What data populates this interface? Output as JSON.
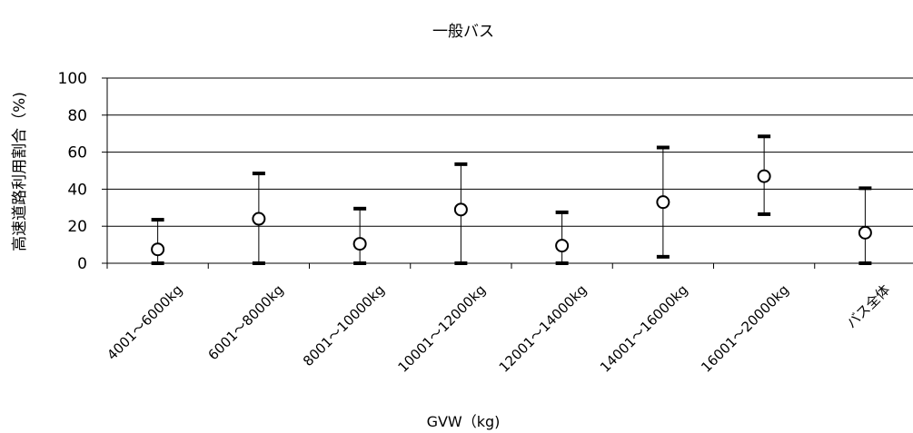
{
  "chart_data": {
    "type": "scatter",
    "title": "一般バス",
    "xlabel": "GVW（kg)",
    "ylabel": "高速道路利用割合（%)",
    "ylim": [
      0,
      100
    ],
    "yticks": [
      0,
      20,
      40,
      60,
      80,
      100
    ],
    "grid": true,
    "categories": [
      "4001～6000kg",
      "6001～8000kg",
      "8001～10000kg",
      "10001～12000kg",
      "12001～14000kg",
      "14001～16000kg",
      "16001～20000kg",
      "バス全体"
    ],
    "series": [
      {
        "marker": "open-circle",
        "values": [
          7.5,
          24,
          10.5,
          29,
          9.5,
          33,
          47,
          16.5
        ],
        "error_low": [
          0,
          0,
          0,
          0,
          0,
          3.5,
          26.5,
          0
        ],
        "error_high": [
          23.5,
          48.5,
          29.5,
          53.5,
          27.5,
          62.5,
          68.5,
          40.5
        ]
      }
    ]
  }
}
